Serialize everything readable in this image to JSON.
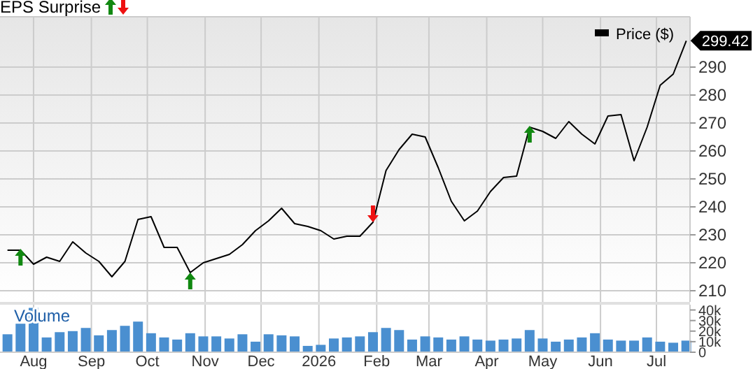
{
  "chart_data": [
    {
      "type": "line",
      "title": "EPS Surprise",
      "legend": "top right",
      "grid": true,
      "tick_labels": "y",
      "x": [
        "2025-07-18",
        "2025-07-25",
        "2025-08-01",
        "2025-08-08",
        "2025-08-15",
        "2025-08-22",
        "2025-08-29",
        "2025-09-05",
        "2025-09-12",
        "2025-09-19",
        "2025-09-26",
        "2025-10-03",
        "2025-10-10",
        "2025-10-17",
        "2025-10-24",
        "2025-10-31",
        "2025-11-07",
        "2025-11-14",
        "2025-11-21",
        "2025-11-28",
        "2025-12-05",
        "2025-12-12",
        "2025-12-19",
        "2025-12-26",
        "2026-01-02",
        "2026-01-09",
        "2026-01-16",
        "2026-01-23",
        "2026-01-30",
        "2026-02-06",
        "2026-02-13",
        "2026-02-20",
        "2026-02-27",
        "2026-03-06",
        "2026-03-13",
        "2026-03-20",
        "2026-03-27",
        "2026-04-03",
        "2026-04-10",
        "2026-04-17",
        "2026-04-24",
        "2026-05-01",
        "2026-05-08",
        "2026-05-15",
        "2026-05-22",
        "2026-05-29",
        "2026-06-05",
        "2026-06-12",
        "2026-06-19",
        "2026-06-26",
        "2026-07-03",
        "2026-07-10",
        "2026-07-17"
      ],
      "series": [
        {
          "name": "Price ($)",
          "color": "#000000",
          "values": [
            224.5,
            224.5,
            219.5,
            222,
            220.5,
            227.5,
            223.5,
            220.5,
            215,
            220.5,
            235.5,
            236.5,
            225.5,
            225.5,
            216.5,
            220,
            221.5,
            223,
            226.5,
            231.5,
            235,
            239.5,
            234,
            233,
            231.5,
            228.5,
            229.5,
            229.5,
            234.5,
            253,
            260.5,
            266,
            265,
            254,
            242,
            235,
            238.5,
            245.5,
            250.5,
            251,
            268.5,
            267,
            264.5,
            270.5,
            266,
            262.5,
            272.5,
            273,
            256.5,
            268.5,
            283.5,
            287.5,
            299.42
          ]
        },
        {
          "type": "scatter",
          "marker": "triangle",
          "color": "#118811",
          "x": [
            "2025-07-25",
            "2025-10-24",
            "2026-04-24"
          ],
          "values": [
            222,
            213.5,
            266
          ]
        },
        {
          "type": "scatter",
          "marker": "triangle",
          "color": "#ee1111",
          "x": [
            "2026-01-30"
          ],
          "values": [
            237.5
          ]
        }
      ],
      "xlim": [
        "2025-07-14",
        "2026-07-19"
      ],
      "xticks": [
        {
          "value": "2025-08-01",
          "label": null
        },
        {
          "value": "2025-09-01",
          "label": null
        },
        {
          "value": "2025-10-01",
          "label": null
        },
        {
          "value": "2025-11-01",
          "label": null
        },
        {
          "value": "2025-12-01",
          "label": null
        },
        {
          "value": "2026-01-01",
          "label": null
        },
        {
          "value": "2026-02-01",
          "label": null
        },
        {
          "value": "2026-03-01",
          "label": null
        },
        {
          "value": "2026-04-01",
          "label": null
        },
        {
          "value": "2026-05-01",
          "label": null
        },
        {
          "value": "2026-06-01",
          "label": null
        },
        {
          "value": "2026-07-01",
          "label": null
        }
      ],
      "ylim": [
        206,
        308
      ],
      "yticks": [
        210,
        220,
        230,
        240,
        250,
        260,
        270,
        280,
        290
      ],
      "annotations": [
        {
          "text": "299.42",
          "x": "2026-07-17",
          "y": 299.42
        }
      ]
    },
    {
      "type": "bar",
      "title": "Volume",
      "grid": "x",
      "color": "#4a8fd0",
      "x": [
        "2025-07-18",
        "2025-07-25",
        "2025-08-01",
        "2025-08-08",
        "2025-08-15",
        "2025-08-22",
        "2025-08-29",
        "2025-09-05",
        "2025-09-12",
        "2025-09-19",
        "2025-09-26",
        "2025-10-03",
        "2025-10-10",
        "2025-10-17",
        "2025-10-24",
        "2025-10-31",
        "2025-11-07",
        "2025-11-14",
        "2025-11-21",
        "2025-11-28",
        "2025-12-05",
        "2025-12-12",
        "2025-12-19",
        "2025-12-26",
        "2026-01-02",
        "2026-01-09",
        "2026-01-16",
        "2026-01-23",
        "2026-01-30",
        "2026-02-06",
        "2026-02-13",
        "2026-02-20",
        "2026-02-27",
        "2026-03-06",
        "2026-03-13",
        "2026-03-20",
        "2026-03-27",
        "2026-04-03",
        "2026-04-10",
        "2026-04-17",
        "2026-04-24",
        "2026-05-01",
        "2026-05-08",
        "2026-05-15",
        "2026-05-22",
        "2026-05-29",
        "2026-06-05",
        "2026-06-12",
        "2026-06-19",
        "2026-06-26",
        "2026-07-03",
        "2026-07-10",
        "2026-07-17"
      ],
      "values": [
        17000,
        27000,
        42000,
        14000,
        19000,
        20000,
        23000,
        16000,
        21000,
        25000,
        29000,
        18000,
        14000,
        12000,
        18000,
        15000,
        15000,
        13000,
        17000,
        10000,
        17000,
        16000,
        15000,
        6000,
        7000,
        13000,
        14000,
        15000,
        19000,
        23000,
        21000,
        12000,
        15000,
        14000,
        12000,
        15000,
        12000,
        11000,
        12000,
        13000,
        21000,
        13000,
        10000,
        12000,
        14000,
        18000,
        12000,
        11000,
        11000,
        14000,
        10000,
        9000,
        11000
      ],
      "xlim": [
        "2025-07-14",
        "2026-07-19"
      ],
      "xticks": [
        {
          "value": "2025-08-01",
          "label": "Aug"
        },
        {
          "value": "2025-09-01",
          "label": "Sep"
        },
        {
          "value": "2025-10-01",
          "label": "Oct"
        },
        {
          "value": "2025-11-01",
          "label": "Nov"
        },
        {
          "value": "2025-12-01",
          "label": "Dec"
        },
        {
          "value": "2026-01-01",
          "label": "2026"
        },
        {
          "value": "2026-02-01",
          "label": "Feb"
        },
        {
          "value": "2026-03-01",
          "label": "Mar"
        },
        {
          "value": "2026-04-01",
          "label": "Apr"
        },
        {
          "value": "2026-05-01",
          "label": "May"
        },
        {
          "value": "2026-06-01",
          "label": "Jun"
        },
        {
          "value": "2026-07-01",
          "label": "Jul"
        }
      ],
      "ylim": [
        0,
        45000
      ],
      "yticks": [
        0,
        {
          "value": 10000,
          "label": "10k"
        },
        {
          "value": 20000,
          "label": "20k"
        },
        {
          "value": 30000,
          "label": "30k"
        },
        {
          "value": 40000,
          "label": "40k"
        }
      ]
    }
  ]
}
